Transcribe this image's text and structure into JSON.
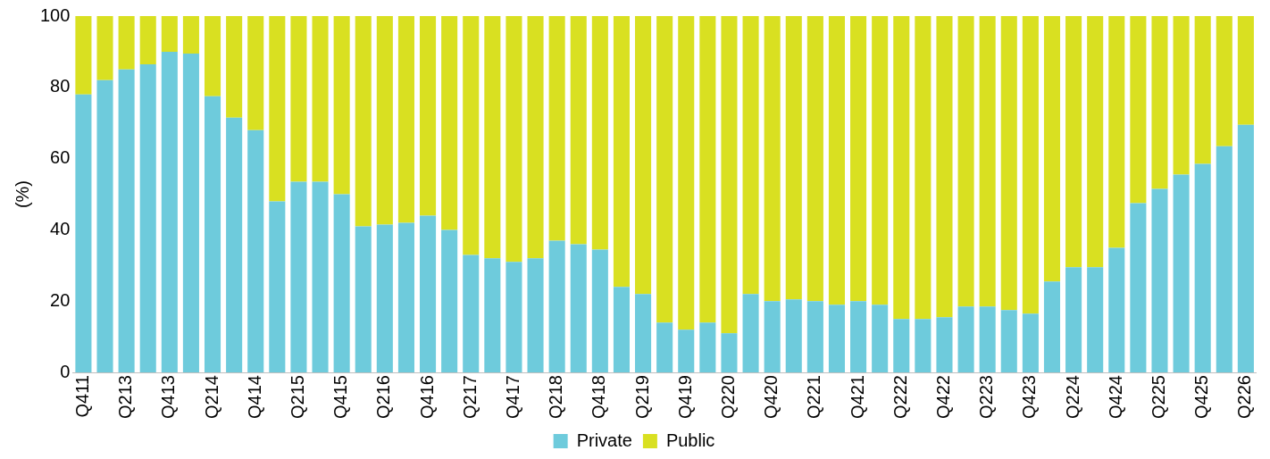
{
  "chart_data": {
    "type": "bar",
    "stacked": true,
    "ylabel": "(%)",
    "ylim": [
      0,
      100
    ],
    "yticks": [
      0,
      20,
      40,
      60,
      80,
      100
    ],
    "grid": false,
    "legend": "bottom",
    "categories": [
      "Q411",
      null,
      "Q213",
      null,
      "Q413",
      null,
      "Q214",
      null,
      "Q414",
      null,
      "Q215",
      null,
      "Q415",
      null,
      "Q216",
      null,
      "Q416",
      null,
      "Q217",
      null,
      "Q417",
      null,
      "Q218",
      null,
      "Q418",
      null,
      "Q219",
      null,
      "Q419",
      null,
      "Q220",
      null,
      "Q420",
      null,
      "Q221",
      null,
      "Q421",
      null,
      "Q222",
      null,
      "Q422",
      null,
      "Q223",
      null,
      "Q423",
      null,
      "Q224",
      null,
      "Q424",
      null,
      "Q225",
      null,
      "Q425",
      null,
      "Q226"
    ],
    "series": [
      {
        "name": "Private",
        "color": "#6ecbdc",
        "values": [
          78,
          82,
          85,
          86.5,
          90,
          89.5,
          77.5,
          71.5,
          68,
          48,
          53.5,
          53.5,
          50,
          41,
          41.5,
          42,
          44,
          40,
          33,
          32,
          31,
          32,
          37,
          36,
          34.5,
          24,
          22,
          14,
          12,
          14,
          11,
          22,
          20,
          20.5,
          20,
          19,
          20,
          19,
          15,
          15,
          15.5,
          18.5,
          18.5,
          17.5,
          16.5,
          25.5,
          29.5,
          29.5,
          35,
          47.5,
          51.5,
          55.5,
          58.5,
          63.5,
          69.5
        ]
      },
      {
        "name": "Public",
        "color": "#d9e021",
        "values": [
          22,
          18,
          15,
          13.5,
          10,
          10.5,
          22.5,
          28.5,
          32,
          52,
          46.5,
          46.5,
          50,
          59,
          58.5,
          58,
          56,
          60,
          67,
          68,
          69,
          68,
          63,
          64,
          65.5,
          76,
          78,
          86,
          88,
          86,
          89,
          78,
          80,
          79.5,
          80,
          81,
          80,
          81,
          85,
          85,
          84.5,
          81.5,
          81.5,
          82.5,
          83.5,
          74.5,
          70.5,
          70.5,
          65,
          52.5,
          48.5,
          44.5,
          41.5,
          36.5,
          30.5
        ]
      }
    ]
  }
}
